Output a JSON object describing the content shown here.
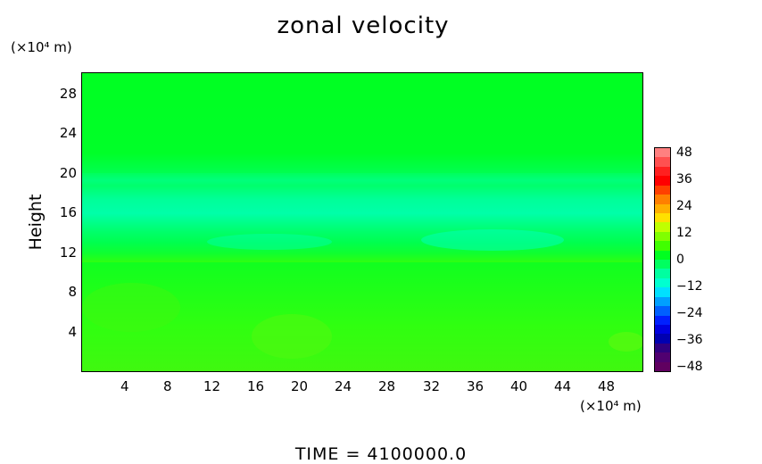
{
  "chart_data": {
    "type": "heatmap",
    "title": "zonal velocity",
    "ylabel": "Height",
    "y_unit_label": "(×10⁴ m)",
    "x_unit_label": "(×10⁴ m)",
    "x_ticks": [
      "4",
      "8",
      "12",
      "16",
      "20",
      "24",
      "28",
      "32",
      "36",
      "40",
      "44",
      "48"
    ],
    "y_ticks": [
      "4",
      "8",
      "12",
      "16",
      "20",
      "24",
      "28"
    ],
    "xlim": [
      0,
      51
    ],
    "ylim": [
      0,
      30
    ],
    "colorbar": {
      "ticks": [
        "48",
        "36",
        "24",
        "12",
        "0",
        "-12",
        "-24",
        "-36",
        "-48"
      ],
      "range": [
        -48,
        48
      ],
      "colors": [
        "#ff8080",
        "#ff5050",
        "#ff2020",
        "#ff0000",
        "#ff4000",
        "#ff8000",
        "#ffb000",
        "#ffe000",
        "#c0ff00",
        "#80ff00",
        "#40ff00",
        "#00ff20",
        "#00ff60",
        "#00ffa0",
        "#00ffd0",
        "#00e0ff",
        "#00a0ff",
        "#0060ff",
        "#0020ff",
        "#0000e0",
        "#0000b0",
        "#300080",
        "#500070",
        "#600060"
      ]
    },
    "field_summary": "mostly near 0 m/s; negative band (about -8 to -4) between heights 11 and 20; slight positive near surface"
  },
  "footer": {
    "time_label": "TIME  =  4100000.0"
  }
}
